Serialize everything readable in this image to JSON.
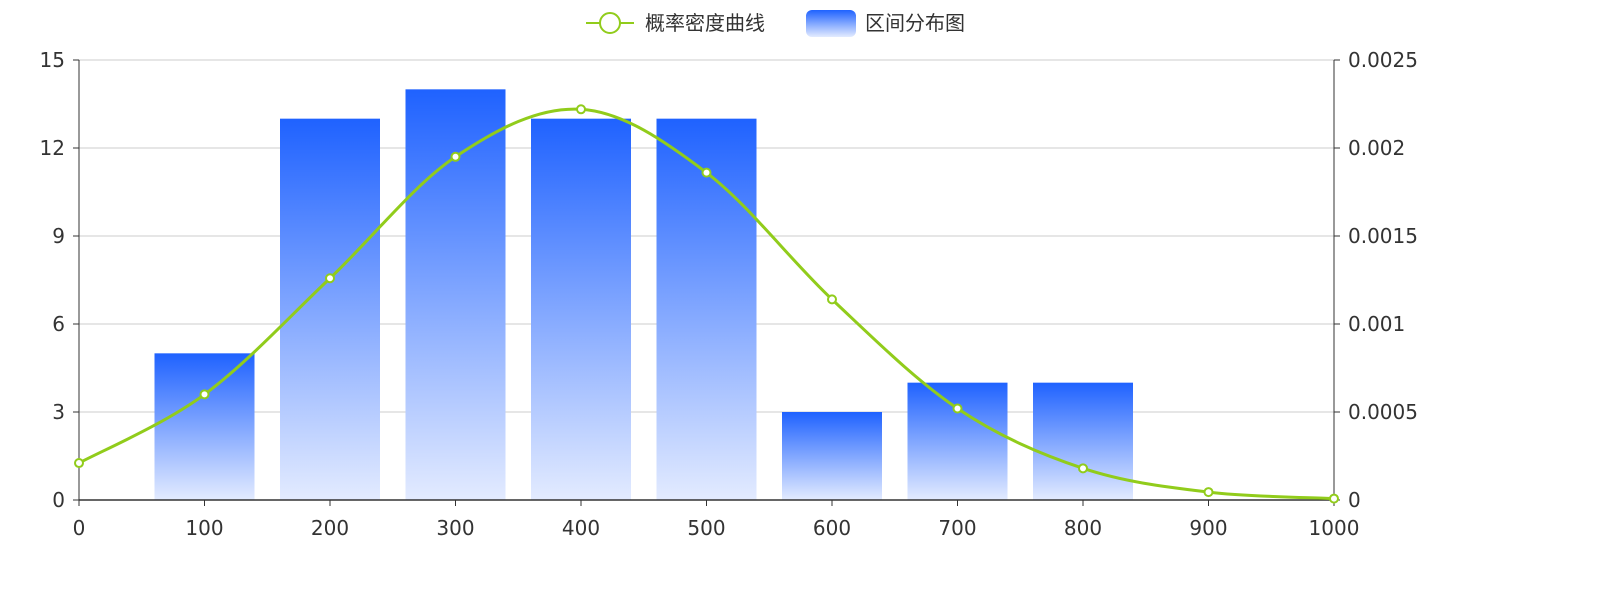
{
  "legend": {
    "line_label": "概率密度曲线",
    "bar_label": "区间分布图"
  },
  "colors": {
    "bar_top": "#1f62ff",
    "bar_bottom": "#e3ebff",
    "line": "#91cc1b",
    "grid": "#cccccc",
    "axis": "#333333",
    "text": "#333333"
  },
  "chart_data": {
    "type": "bar",
    "x_ticks": [
      0,
      100,
      200,
      300,
      400,
      500,
      600,
      700,
      800,
      900,
      1000
    ],
    "xlim": [
      0,
      1000
    ],
    "y_left": {
      "ticks": [
        "0",
        "3",
        "6",
        "9",
        "12",
        "15"
      ],
      "ylim": [
        0,
        15
      ]
    },
    "y_right": {
      "ticks": [
        "0",
        "0.0005",
        "0.001",
        "0.0015",
        "0.002",
        "0.0025"
      ],
      "ylim": [
        0,
        0.0025
      ]
    },
    "bars": {
      "name": "区间分布图",
      "axis": "left",
      "x": [
        100,
        200,
        300,
        400,
        500,
        600,
        700,
        800
      ],
      "values": [
        5,
        13,
        14,
        13,
        13,
        3,
        4,
        4
      ]
    },
    "line": {
      "name": "概率密度曲线",
      "axis": "right",
      "smooth": true,
      "x": [
        0,
        100,
        200,
        300,
        400,
        500,
        600,
        700,
        800,
        900,
        1000
      ],
      "values": [
        0.00021,
        0.0006,
        0.00126,
        0.00195,
        0.00222,
        0.00186,
        0.00114,
        0.00052,
        0.00018,
        4.5e-05,
        8e-06
      ]
    },
    "grid": true,
    "legend_position": "top-center"
  }
}
